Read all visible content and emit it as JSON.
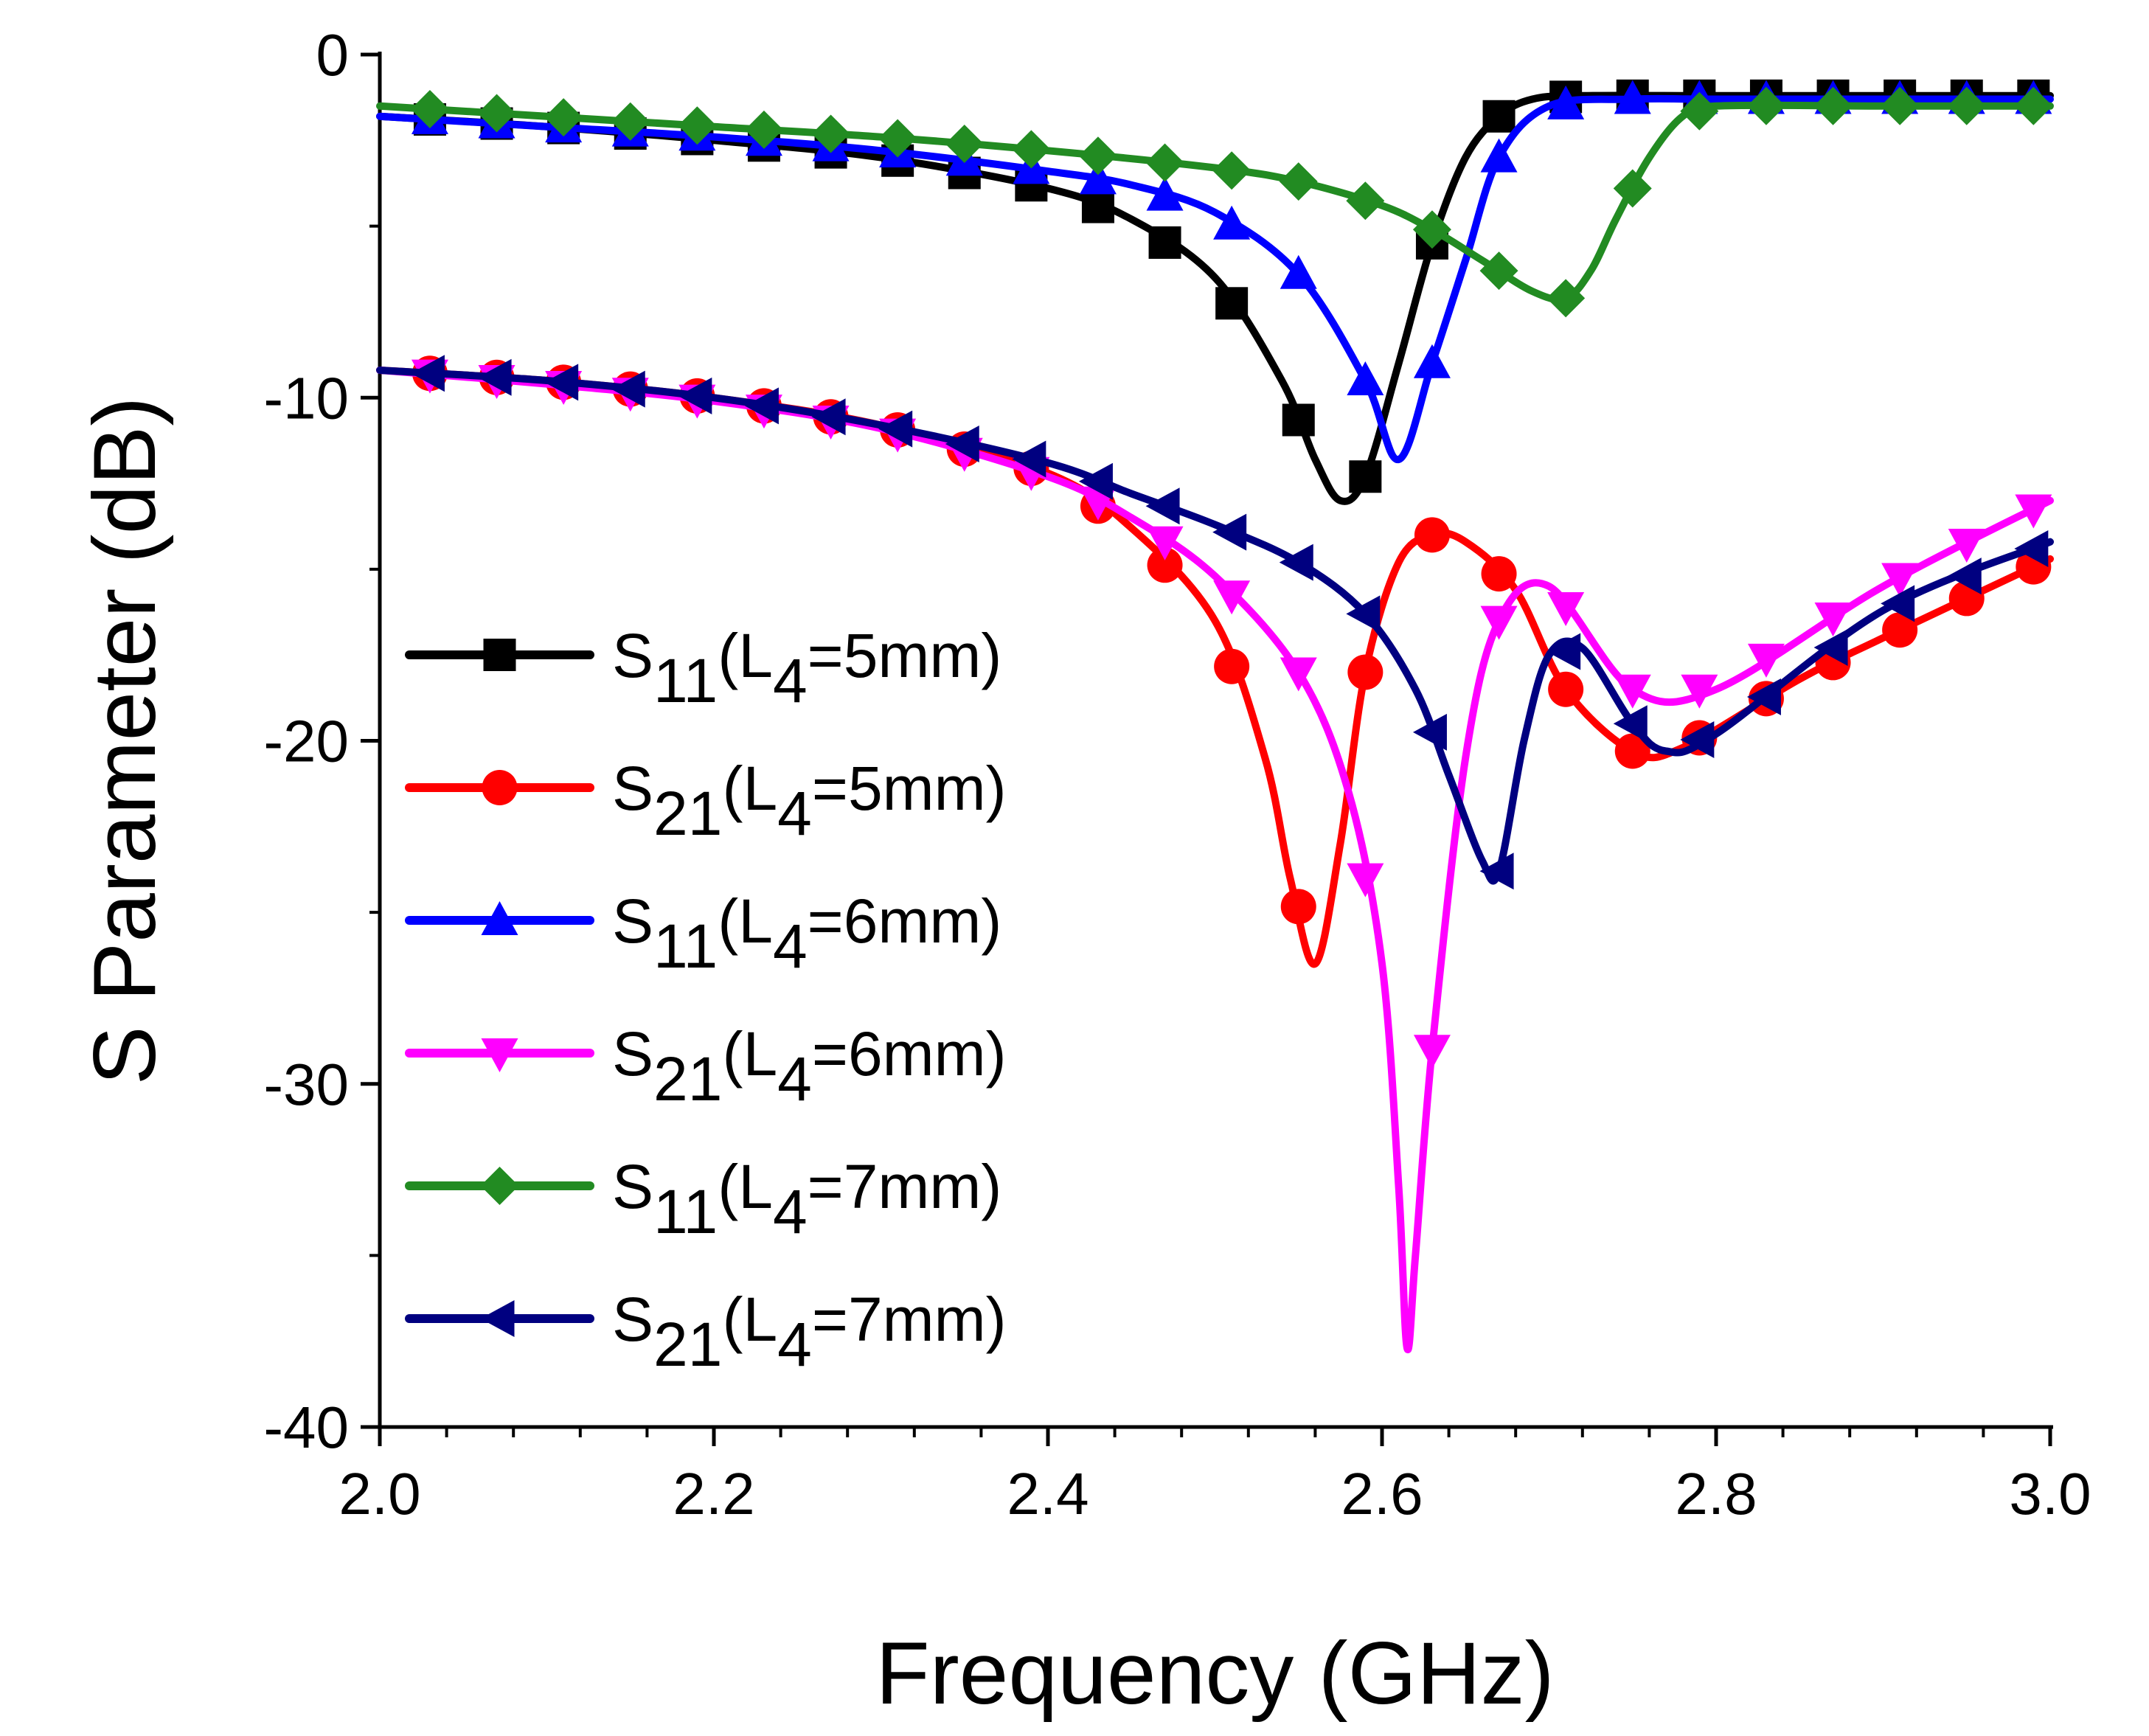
{
  "chart_data": {
    "type": "line",
    "title": "",
    "xlabel": "Frequency (GHz)",
    "ylabel": "S Parameter (dB)",
    "xlim": [
      2.0,
      3.0
    ],
    "ylim": [
      -40,
      0
    ],
    "xticks": [
      2.0,
      2.2,
      2.4,
      2.6,
      2.8,
      3.0
    ],
    "xtick_labels": [
      "2.0",
      "2.2",
      "2.4",
      "2.6",
      "2.8",
      "3.0"
    ],
    "yticks": [
      0,
      -10,
      -20,
      -30,
      -40
    ],
    "ytick_labels": [
      "0",
      "-10",
      "-20",
      "-30",
      "-40"
    ],
    "grid": false,
    "legend_position": "center-left",
    "series": [
      {
        "name": "S11(L4=5mm)",
        "label_main": "S",
        "label_sub": "11",
        "label_open": "(L",
        "label_sub2": "4",
        "label_tail": "=5mm)",
        "color": "#000000",
        "marker": "square",
        "x": [
          2.0,
          2.1,
          2.2,
          2.3,
          2.4,
          2.45,
          2.5,
          2.54,
          2.56,
          2.575,
          2.59,
          2.61,
          2.63,
          2.65,
          2.67,
          2.69,
          2.72,
          2.8,
          2.9,
          3.0
        ],
        "y": [
          -1.8,
          -2.1,
          -2.5,
          -3.0,
          -3.9,
          -4.8,
          -6.5,
          -9.5,
          -11.8,
          -13.0,
          -12.3,
          -9.0,
          -5.5,
          -3.0,
          -1.8,
          -1.3,
          -1.2,
          -1.2,
          -1.2,
          -1.2
        ]
      },
      {
        "name": "S21(L4=5mm)",
        "label_main": "S",
        "label_sub": "21",
        "label_open": "(L",
        "label_sub2": "4",
        "label_tail": "=5mm)",
        "color": "#ff0000",
        "marker": "circle",
        "x": [
          2.0,
          2.1,
          2.2,
          2.3,
          2.4,
          2.45,
          2.5,
          2.53,
          2.545,
          2.56,
          2.575,
          2.59,
          2.61,
          2.63,
          2.65,
          2.68,
          2.71,
          2.75,
          2.78,
          2.85,
          2.9,
          3.0
        ],
        "y": [
          -9.2,
          -9.5,
          -10.0,
          -10.8,
          -12.2,
          -13.8,
          -16.5,
          -20.5,
          -24.0,
          -26.5,
          -23.0,
          -18.0,
          -14.8,
          -14.0,
          -14.2,
          -15.6,
          -18.5,
          -20.3,
          -20.2,
          -18.2,
          -17.0,
          -14.7
        ]
      },
      {
        "name": "S11(L4=6mm)",
        "label_main": "S",
        "label_sub": "11",
        "label_open": "(L",
        "label_sub2": "4",
        "label_tail": "=6mm)",
        "color": "#0000ff",
        "marker": "triangle-up",
        "x": [
          2.0,
          2.1,
          2.2,
          2.3,
          2.4,
          2.45,
          2.5,
          2.55,
          2.59,
          2.61,
          2.63,
          2.65,
          2.67,
          2.7,
          2.75,
          2.8,
          2.9,
          3.0
        ],
        "y": [
          -1.8,
          -2.1,
          -2.4,
          -2.8,
          -3.4,
          -3.8,
          -4.6,
          -6.4,
          -9.5,
          -11.8,
          -9.0,
          -6.0,
          -3.0,
          -1.5,
          -1.3,
          -1.3,
          -1.3,
          -1.3
        ]
      },
      {
        "name": "S21(L4=6mm)",
        "label_main": "S",
        "label_sub": "21",
        "label_open": "(L",
        "label_sub2": "4",
        "label_tail": "=6mm)",
        "color": "#ff00ff",
        "marker": "triangle-down",
        "x": [
          2.0,
          2.1,
          2.2,
          2.3,
          2.4,
          2.45,
          2.5,
          2.55,
          2.58,
          2.6,
          2.61,
          2.615,
          2.62,
          2.63,
          2.65,
          2.67,
          2.7,
          2.75,
          2.8,
          2.9,
          3.0
        ],
        "y": [
          -9.2,
          -9.6,
          -10.1,
          -10.9,
          -12.3,
          -13.5,
          -15.2,
          -18.0,
          -21.5,
          -26.5,
          -33.0,
          -37.7,
          -35.0,
          -29.0,
          -20.5,
          -16.5,
          -15.5,
          -18.5,
          -18.5,
          -15.5,
          -13.0
        ]
      },
      {
        "name": "S11(L4=7mm)",
        "label_main": "S",
        "label_sub": "11",
        "label_open": "(L",
        "label_sub2": "4",
        "label_tail": "=7mm)",
        "color": "#228b22",
        "marker": "diamond",
        "x": [
          2.0,
          2.1,
          2.2,
          2.3,
          2.4,
          2.5,
          2.55,
          2.6,
          2.63,
          2.66,
          2.69,
          2.71,
          2.725,
          2.74,
          2.76,
          2.78,
          2.8,
          2.9,
          3.0
        ],
        "y": [
          -1.5,
          -1.8,
          -2.1,
          -2.4,
          -2.8,
          -3.3,
          -3.7,
          -4.4,
          -5.1,
          -6.0,
          -6.9,
          -7.1,
          -6.3,
          -4.8,
          -3.0,
          -1.8,
          -1.5,
          -1.5,
          -1.5
        ]
      },
      {
        "name": "S21(L4=7mm)",
        "label_main": "S",
        "label_sub": "21",
        "label_open": "(L",
        "label_sub2": "4",
        "label_tail": "=7mm)",
        "color": "#000080",
        "marker": "triangle-left",
        "x": [
          2.0,
          2.1,
          2.2,
          2.3,
          2.4,
          2.45,
          2.5,
          2.55,
          2.59,
          2.62,
          2.64,
          2.66,
          2.67,
          2.685,
          2.7,
          2.72,
          2.75,
          2.77,
          2.8,
          2.9,
          3.0
        ],
        "y": [
          -9.2,
          -9.5,
          -10.0,
          -10.8,
          -11.9,
          -12.8,
          -13.7,
          -14.8,
          -16.3,
          -18.5,
          -21.0,
          -23.5,
          -23.8,
          -20.0,
          -17.5,
          -17.3,
          -19.5,
          -20.3,
          -19.8,
          -16.2,
          -14.2
        ]
      }
    ]
  }
}
